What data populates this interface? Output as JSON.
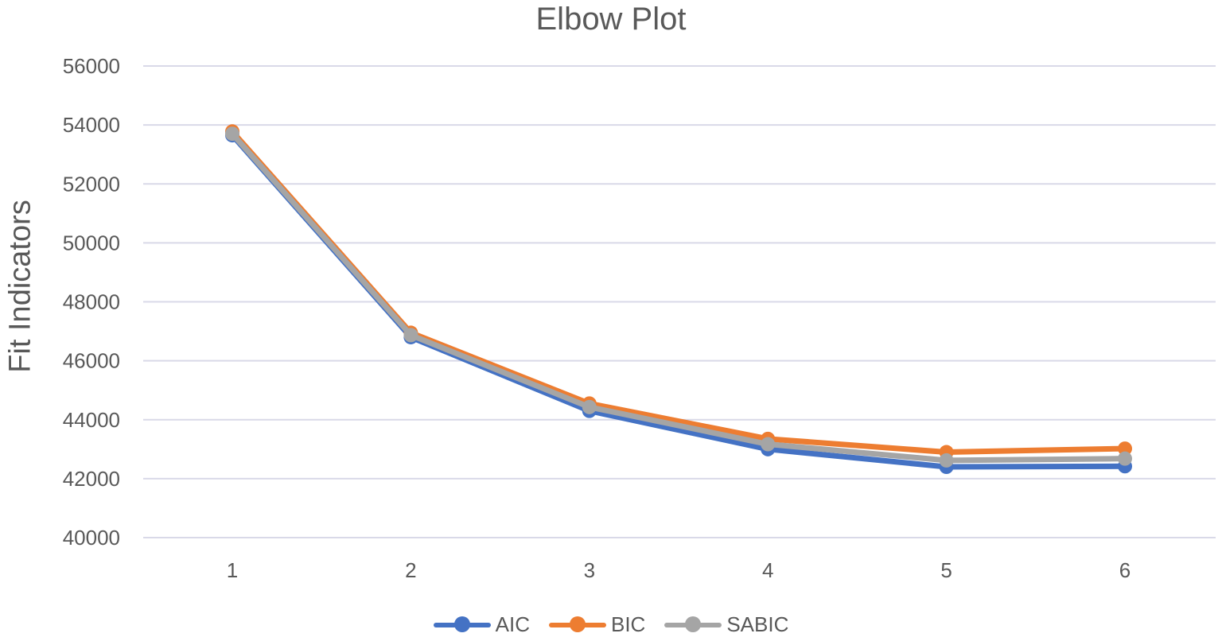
{
  "chart_data": {
    "type": "line",
    "title": "Elbow Plot",
    "xlabel": "",
    "ylabel": "Fit Indicators",
    "categories": [
      "1",
      "2",
      "3",
      "4",
      "5",
      "6"
    ],
    "ylim": [
      40000,
      56000
    ],
    "yticks": [
      "40000",
      "42000",
      "44000",
      "46000",
      "48000",
      "50000",
      "52000",
      "54000",
      "56000"
    ],
    "grid": true,
    "legend_position": "bottom",
    "series": [
      {
        "name": "AIC",
        "color": "#4472c4",
        "values": [
          53650,
          46800,
          44300,
          43000,
          42400,
          42420
        ]
      },
      {
        "name": "BIC",
        "color": "#ed7d31",
        "values": [
          53780,
          46950,
          44550,
          43350,
          42900,
          43020
        ]
      },
      {
        "name": "SABIC",
        "color": "#a5a5a5",
        "values": [
          53700,
          46870,
          44430,
          43170,
          42620,
          42680
        ]
      }
    ]
  }
}
